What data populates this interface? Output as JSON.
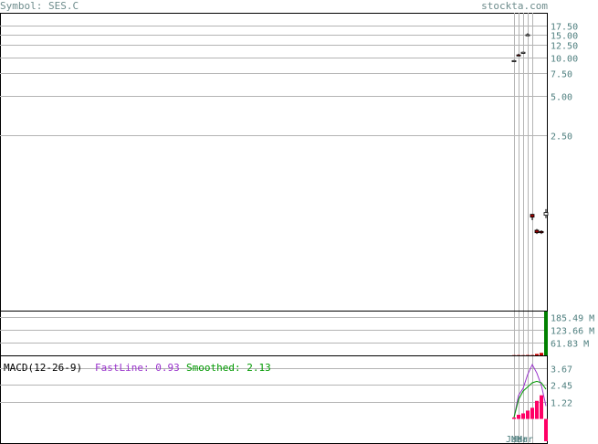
{
  "header": {
    "symbol_label": "Symbol: SES.C",
    "site": "stockta.com"
  },
  "colors": {
    "frame": "#000000",
    "grid": "#b4b4b4",
    "axis_text": "#4f7f7f",
    "candle_down": "#a00000",
    "volume_up": "#008000",
    "volume_down": "#cc0000",
    "macd_fast": "#9933cc",
    "macd_smooth": "#009900",
    "macd_hist": "#ff0066"
  },
  "chart_data": [
    {
      "type": "candlestick",
      "panel": "price",
      "yscale": "log",
      "ylim": [
        0.11,
        22
      ],
      "ytick_labels": [
        "17.50",
        "15.00",
        "12.50",
        "10.00",
        "7.50",
        "5.00",
        "2.50"
      ],
      "ytick_values": [
        17.5,
        15,
        12.5,
        10,
        7.5,
        5,
        2.5
      ],
      "xtick_labels": [
        "Jan",
        "Mar",
        "Mar"
      ],
      "candles": [
        {
          "open": 9.4,
          "high": 9.5,
          "low": 9.3,
          "close": 9.4
        },
        {
          "open": 10.4,
          "high": 10.6,
          "low": 10.2,
          "close": 10.3
        },
        {
          "open": 10.9,
          "high": 11.0,
          "low": 10.7,
          "close": 10.9
        },
        {
          "open": 14.8,
          "high": 15.3,
          "low": 14.6,
          "close": 14.9
        },
        {
          "open": 0.61,
          "high": 0.61,
          "low": 0.55,
          "close": 0.58
        },
        {
          "open": 0.46,
          "high": 0.47,
          "low": 0.43,
          "close": 0.44
        },
        {
          "open": 0.45,
          "high": 0.46,
          "low": 0.43,
          "close": 0.44
        },
        {
          "open": 0.6,
          "high": 0.67,
          "low": 0.57,
          "close": 0.63
        }
      ]
    },
    {
      "type": "bar",
      "panel": "volume",
      "ytick_labels": [
        "185.49 M",
        "123.66 M",
        "61.83 M"
      ],
      "ytick_values": [
        185.49,
        123.66,
        61.83
      ],
      "ylim": [
        0,
        210
      ],
      "values": [
        1.2,
        1.5,
        1.2,
        2.0,
        1.8,
        7.0,
        12.0,
        210.0
      ],
      "directions": [
        "down",
        "down",
        "down",
        "down",
        "down",
        "down",
        "down",
        "up"
      ]
    },
    {
      "type": "line",
      "panel": "macd",
      "title": "MACD(12-26-9)",
      "fast_label": "FastLine: 0.93",
      "smooth_label": "Smoothed: 2.13",
      "ytick_labels": [
        "3.67",
        "2.45",
        "1.22"
      ],
      "ytick_values": [
        3.67,
        2.45,
        1.22
      ],
      "ylim": [
        -1.8,
        4.5
      ],
      "series": [
        {
          "name": "FastLine",
          "values": [
            0.1,
            1.7,
            2.2,
            3.2,
            3.9,
            3.3,
            2.4,
            0.93
          ]
        },
        {
          "name": "Smoothed",
          "values": [
            0.1,
            1.4,
            2.0,
            2.3,
            2.6,
            2.7,
            2.6,
            2.13
          ]
        }
      ],
      "histogram": [
        0.1,
        0.3,
        0.4,
        0.6,
        0.8,
        1.3,
        1.7,
        -1.6
      ]
    }
  ]
}
